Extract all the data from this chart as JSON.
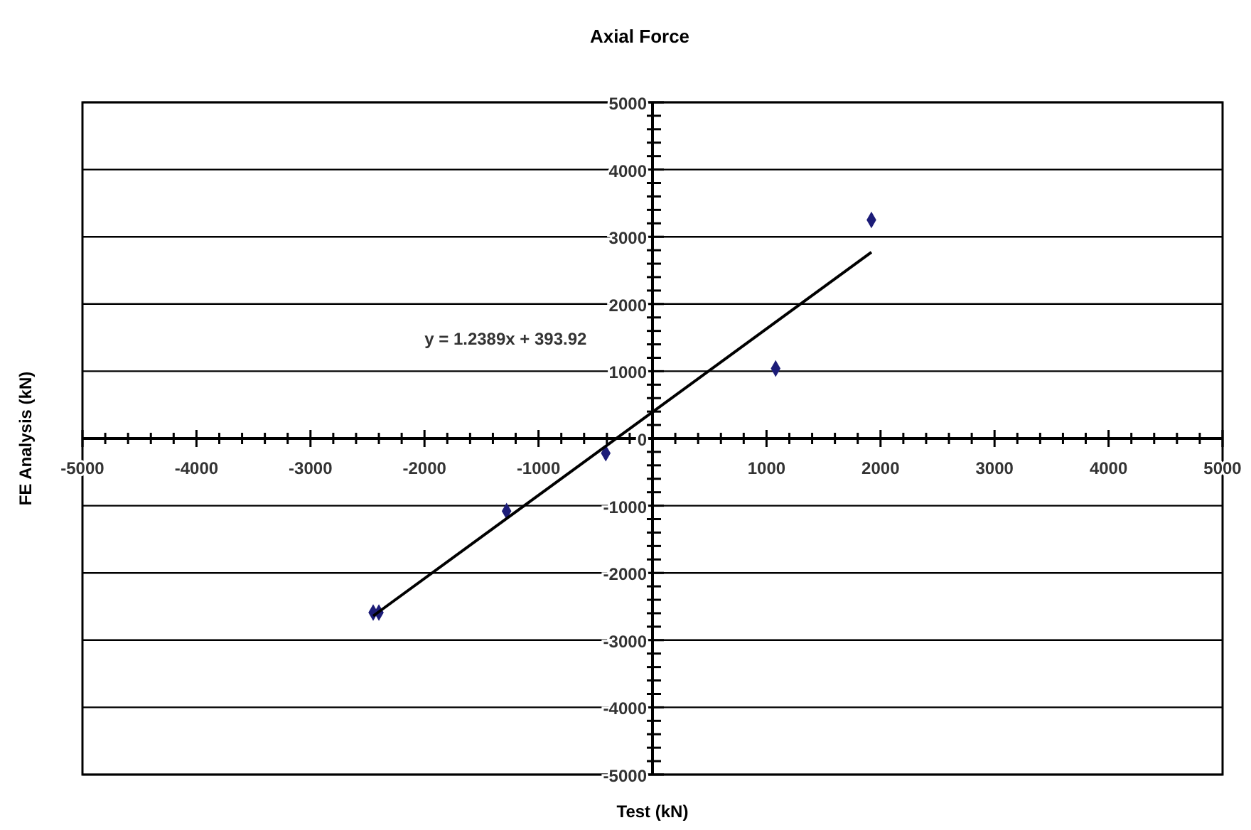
{
  "chart_data": {
    "type": "scatter",
    "title": "Axial Force",
    "xlabel": "Test (kN)",
    "ylabel": "FE Analysis (kN)",
    "annotations": [
      "y = 1.2389x + 393.92"
    ],
    "xlim": [
      -5000,
      5000
    ],
    "ylim": [
      -5000,
      5000
    ],
    "xticks": [
      -5000,
      -4000,
      -3000,
      -2000,
      -1000,
      {
        "value": 0,
        "label": null
      },
      1000,
      2000,
      3000,
      4000,
      5000,
      {
        "value": -4800,
        "label": null
      },
      {
        "value": -4600,
        "label": null
      },
      {
        "value": -4400,
        "label": null
      },
      {
        "value": -4200,
        "label": null
      },
      {
        "value": -3800,
        "label": null
      },
      {
        "value": -3600,
        "label": null
      },
      {
        "value": -3400,
        "label": null
      },
      {
        "value": -3200,
        "label": null
      },
      {
        "value": -2800,
        "label": null
      },
      {
        "value": -2600,
        "label": null
      },
      {
        "value": -2400,
        "label": null
      },
      {
        "value": -2200,
        "label": null
      },
      {
        "value": -1800,
        "label": null
      },
      {
        "value": -1600,
        "label": null
      },
      {
        "value": -1400,
        "label": null
      },
      {
        "value": -1200,
        "label": null
      },
      {
        "value": -800,
        "label": null
      },
      {
        "value": -600,
        "label": null
      },
      {
        "value": -400,
        "label": null
      },
      {
        "value": -200,
        "label": null
      },
      {
        "value": 200,
        "label": null
      },
      {
        "value": 400,
        "label": null
      },
      {
        "value": 600,
        "label": null
      },
      {
        "value": 800,
        "label": null
      },
      {
        "value": 1200,
        "label": null
      },
      {
        "value": 1400,
        "label": null
      },
      {
        "value": 1600,
        "label": null
      },
      {
        "value": 1800,
        "label": null
      },
      {
        "value": 2200,
        "label": null
      },
      {
        "value": 2400,
        "label": null
      },
      {
        "value": 2600,
        "label": null
      },
      {
        "value": 2800,
        "label": null
      },
      {
        "value": 3200,
        "label": null
      },
      {
        "value": 3400,
        "label": null
      },
      {
        "value": 3600,
        "label": null
      },
      {
        "value": 3800,
        "label": null
      },
      {
        "value": 4200,
        "label": null
      },
      {
        "value": 4400,
        "label": null
      },
      {
        "value": 4600,
        "label": null
      },
      {
        "value": 4800,
        "label": null
      }
    ],
    "yticks": [
      -5000,
      -4000,
      -3000,
      -2000,
      -1000,
      0,
      1000,
      2000,
      3000,
      4000,
      5000,
      {
        "value": -4800,
        "label": null
      },
      {
        "value": -4600,
        "label": null
      },
      {
        "value": -4400,
        "label": null
      },
      {
        "value": -4200,
        "label": null
      },
      {
        "value": -3800,
        "label": null
      },
      {
        "value": -3600,
        "label": null
      },
      {
        "value": -3400,
        "label": null
      },
      {
        "value": -3200,
        "label": null
      },
      {
        "value": -2800,
        "label": null
      },
      {
        "value": -2600,
        "label": null
      },
      {
        "value": -2400,
        "label": null
      },
      {
        "value": -2200,
        "label": null
      },
      {
        "value": -1800,
        "label": null
      },
      {
        "value": -1600,
        "label": null
      },
      {
        "value": -1400,
        "label": null
      },
      {
        "value": -1200,
        "label": null
      },
      {
        "value": -800,
        "label": null
      },
      {
        "value": -600,
        "label": null
      },
      {
        "value": -400,
        "label": null
      },
      {
        "value": -200,
        "label": null
      },
      {
        "value": 200,
        "label": null
      },
      {
        "value": 400,
        "label": null
      },
      {
        "value": 600,
        "label": null
      },
      {
        "value": 800,
        "label": null
      },
      {
        "value": 1200,
        "label": null
      },
      {
        "value": 1400,
        "label": null
      },
      {
        "value": 1600,
        "label": null
      },
      {
        "value": 1800,
        "label": null
      },
      {
        "value": 2200,
        "label": null
      },
      {
        "value": 2400,
        "label": null
      },
      {
        "value": 2600,
        "label": null
      },
      {
        "value": 2800,
        "label": null
      },
      {
        "value": 3200,
        "label": null
      },
      {
        "value": 3400,
        "label": null
      },
      {
        "value": 3600,
        "label": null
      },
      {
        "value": 3800,
        "label": null
      },
      {
        "value": 4200,
        "label": null
      },
      {
        "value": 4400,
        "label": null
      },
      {
        "value": 4600,
        "label": null
      },
      {
        "value": 4800,
        "label": null
      }
    ],
    "grid": "y",
    "marker": "diamond",
    "series": [
      {
        "type": "scatter",
        "color": "#1c1c78",
        "x": [
          -2450,
          -2400,
          -1280,
          -410,
          1080,
          1920
        ],
        "values": [
          -2590,
          -2590,
          -1080,
          -220,
          1040,
          3250
        ]
      },
      {
        "type": "line",
        "color": "#000000",
        "line_style": "solid",
        "marker": "none",
        "x": [
          -2450,
          1920
        ],
        "values": [
          -2640,
          2770
        ]
      }
    ]
  }
}
